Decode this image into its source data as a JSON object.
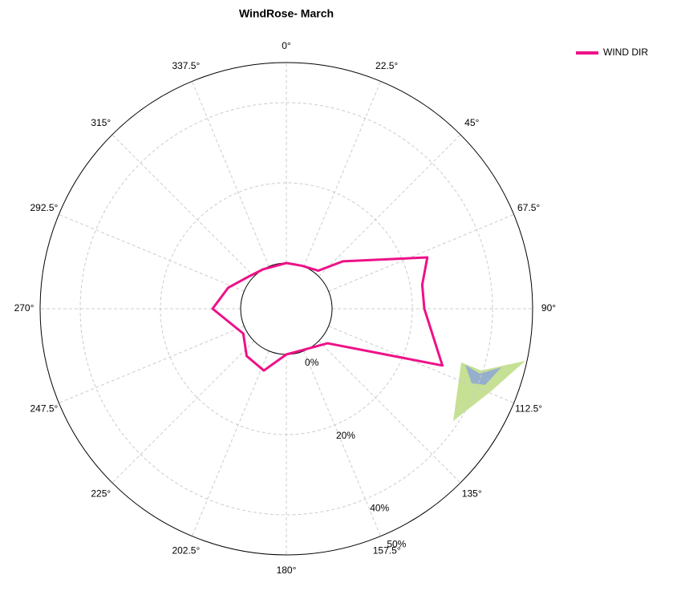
{
  "chart_data": {
    "type": "polar",
    "title": "WindRose- March",
    "rlim": [
      0,
      50
    ],
    "rticks": [
      {
        "value": 0,
        "label": "0%"
      },
      {
        "value": 20,
        "label": "20%"
      },
      {
        "value": 40,
        "label": "40%"
      },
      {
        "value": 50,
        "label": "50%"
      }
    ],
    "thetaticks": [
      {
        "value": 0,
        "label": "0°"
      },
      {
        "value": 22.5,
        "label": "22.5°"
      },
      {
        "value": 45,
        "label": "45°"
      },
      {
        "value": 67.5,
        "label": "67.5°"
      },
      {
        "value": 90,
        "label": "90°"
      },
      {
        "value": 112.5,
        "label": "112.5°"
      },
      {
        "value": 135,
        "label": "135°"
      },
      {
        "value": 157.5,
        "label": "157.5°"
      },
      {
        "value": 180,
        "label": "180°"
      },
      {
        "value": 202.5,
        "label": "202.5°"
      },
      {
        "value": 225,
        "label": "225°"
      },
      {
        "value": 247.5,
        "label": "247.5°"
      },
      {
        "value": 270,
        "label": "270°"
      },
      {
        "value": 292.5,
        "label": "292.5°"
      },
      {
        "value": 315,
        "label": "315°"
      },
      {
        "value": 337.5,
        "label": "337.5°"
      }
    ],
    "grid": true,
    "legend": "top-right",
    "series": [
      {
        "name": "WIND DIR",
        "color": "#ee1188",
        "theta": [
          0,
          20,
          40,
          50,
          70,
          80,
          90,
          110,
          130,
          150,
          180,
          200,
          220,
          240,
          270,
          290,
          310,
          330
        ],
        "values": [
          0,
          0,
          1,
          7,
          26,
          23,
          23,
          30,
          2,
          0,
          0,
          5,
          4,
          1,
          7,
          4,
          1,
          0
        ]
      }
    ]
  }
}
